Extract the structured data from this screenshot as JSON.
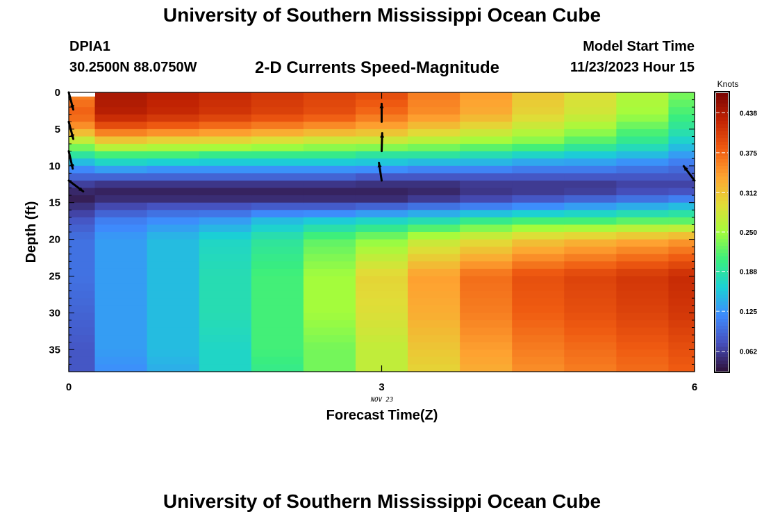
{
  "header": {
    "main_title": "University of Southern Mississippi Ocean Cube",
    "station_id": "DPIA1",
    "coordinates": "30.2500N  88.0750W",
    "chart_title": "2-D Currents Speed-Magnitude",
    "start_time_label": "Model Start Time",
    "start_time_value": "11/23/2023 Hour 15"
  },
  "footer": {
    "title": "University of Southern Mississippi Ocean Cube"
  },
  "chart_data": {
    "type": "heatmap",
    "title": "2-D Currents Speed-Magnitude",
    "xlabel": "Forecast Time(Z)",
    "ylabel": "Depth (ft)",
    "x_ticks": [
      "0",
      "3",
      "6"
    ],
    "x_tick_values": [
      0,
      3,
      6
    ],
    "x_date_label": "NOV 23",
    "y_ticks": [
      "0",
      "5",
      "10",
      "15",
      "20",
      "25",
      "30",
      "35"
    ],
    "y_tick_values": [
      0,
      5,
      10,
      15,
      20,
      25,
      30,
      35
    ],
    "xlim": [
      0,
      6
    ],
    "ylim": [
      0,
      38
    ],
    "y_inverted": true,
    "colorbar": {
      "label": "Knots",
      "range": [
        0.031,
        0.469
      ],
      "ticks": [
        "0.438",
        "0.375",
        "0.312",
        "0.250",
        "0.188",
        "0.125",
        "0.062"
      ],
      "tick_values": [
        0.438,
        0.375,
        0.312,
        0.25,
        0.188,
        0.125,
        0.062
      ],
      "colormap": "turbo"
    },
    "columns_time": [
      0,
      0.5,
      1.0,
      1.5,
      2.0,
      2.5,
      3.0,
      3.5,
      4.0,
      4.5,
      5.0,
      5.5,
      6.0
    ],
    "profiles": [
      {
        "depth": 0.5,
        "speed": [
          0.36,
          0.44,
          0.43,
          0.42,
          0.41,
          0.4,
          0.39,
          0.36,
          0.34,
          0.31,
          0.29,
          0.26,
          0.23
        ]
      },
      {
        "depth": 3,
        "speed": [
          0.38,
          0.43,
          0.42,
          0.41,
          0.4,
          0.39,
          0.37,
          0.35,
          0.33,
          0.3,
          0.28,
          0.25,
          0.21
        ]
      },
      {
        "depth": 5,
        "speed": [
          0.34,
          0.38,
          0.37,
          0.36,
          0.35,
          0.34,
          0.33,
          0.31,
          0.29,
          0.27,
          0.25,
          0.22,
          0.19
        ]
      },
      {
        "depth": 7,
        "speed": [
          0.25,
          0.29,
          0.28,
          0.28,
          0.27,
          0.26,
          0.26,
          0.25,
          0.24,
          0.23,
          0.21,
          0.19,
          0.16
        ]
      },
      {
        "depth": 8.5,
        "speed": [
          0.19,
          0.21,
          0.21,
          0.2,
          0.2,
          0.2,
          0.19,
          0.19,
          0.18,
          0.17,
          0.16,
          0.15,
          0.13
        ]
      },
      {
        "depth": 10,
        "speed": [
          0.13,
          0.15,
          0.14,
          0.14,
          0.14,
          0.14,
          0.14,
          0.13,
          0.13,
          0.12,
          0.12,
          0.11,
          0.1
        ]
      },
      {
        "depth": 11.5,
        "speed": [
          0.09,
          0.09,
          0.09,
          0.09,
          0.09,
          0.09,
          0.08,
          0.08,
          0.08,
          0.08,
          0.08,
          0.08,
          0.08
        ]
      },
      {
        "depth": 13,
        "speed": [
          0.05,
          0.04,
          0.04,
          0.04,
          0.04,
          0.04,
          0.04,
          0.04,
          0.05,
          0.05,
          0.05,
          0.06,
          0.06
        ]
      },
      {
        "depth": 14.5,
        "speed": [
          0.04,
          0.05,
          0.05,
          0.05,
          0.05,
          0.05,
          0.05,
          0.06,
          0.07,
          0.08,
          0.09,
          0.1,
          0.11
        ]
      },
      {
        "depth": 16,
        "speed": [
          0.06,
          0.08,
          0.09,
          0.09,
          0.1,
          0.1,
          0.11,
          0.12,
          0.13,
          0.14,
          0.15,
          0.16,
          0.17
        ]
      },
      {
        "depth": 17.5,
        "speed": [
          0.08,
          0.11,
          0.12,
          0.13,
          0.15,
          0.16,
          0.17,
          0.18,
          0.2,
          0.21,
          0.21,
          0.22,
          0.22
        ]
      },
      {
        "depth": 20,
        "speed": [
          0.1,
          0.13,
          0.15,
          0.17,
          0.19,
          0.22,
          0.24,
          0.27,
          0.29,
          0.31,
          0.32,
          0.33,
          0.34
        ]
      },
      {
        "depth": 25,
        "speed": [
          0.1,
          0.13,
          0.15,
          0.18,
          0.21,
          0.25,
          0.3,
          0.34,
          0.37,
          0.39,
          0.4,
          0.41,
          0.42
        ]
      },
      {
        "depth": 30,
        "speed": [
          0.09,
          0.13,
          0.15,
          0.18,
          0.21,
          0.25,
          0.29,
          0.33,
          0.36,
          0.38,
          0.39,
          0.4,
          0.41
        ]
      },
      {
        "depth": 35,
        "speed": [
          0.08,
          0.13,
          0.15,
          0.17,
          0.21,
          0.23,
          0.27,
          0.31,
          0.34,
          0.36,
          0.37,
          0.38,
          0.39
        ]
      },
      {
        "depth": 38,
        "speed": [
          0.08,
          0.12,
          0.14,
          0.17,
          0.2,
          0.23,
          0.27,
          0.3,
          0.33,
          0.35,
          0.36,
          0.37,
          0.38
        ]
      }
    ],
    "vectors": [
      {
        "time": 0,
        "depth": 0,
        "u": 0.25,
        "v": -0.95
      },
      {
        "time": 0,
        "depth": 4,
        "u": 0.25,
        "v": -0.95
      },
      {
        "time": 0,
        "depth": 8,
        "u": 0.22,
        "v": -0.97
      },
      {
        "time": 0,
        "depth": 12,
        "u": 0.8,
        "v": -0.6
      },
      {
        "time": 3,
        "depth": 4,
        "u": 0.0,
        "v": 1.0
      },
      {
        "time": 3,
        "depth": 8,
        "u": 0.03,
        "v": 1.0
      },
      {
        "time": 3,
        "depth": 12,
        "u": -0.15,
        "v": 0.99
      },
      {
        "time": 6,
        "depth": 12,
        "u": -0.6,
        "v": 0.8
      }
    ]
  }
}
